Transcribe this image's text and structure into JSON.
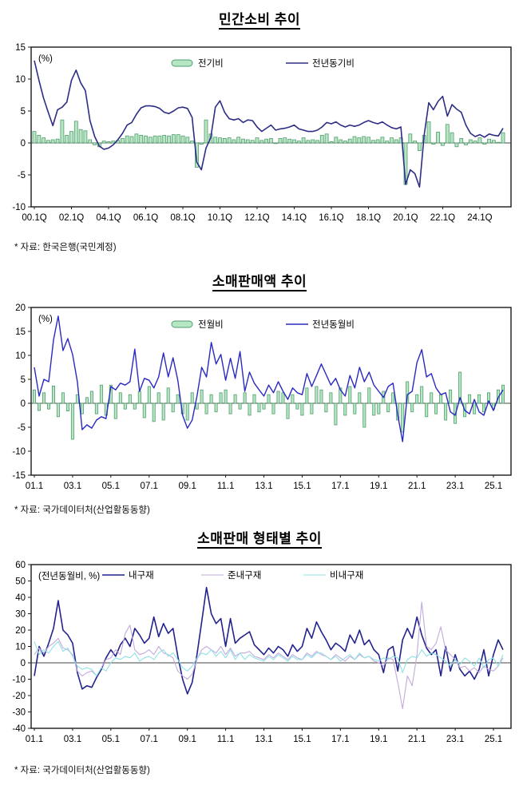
{
  "charts": [
    {
      "title": "민간소비 추이",
      "source": "* 자료: 한국은행(국민계정)",
      "chart_data": {
        "type": "bar+line",
        "unit_label": "(%)",
        "x_start": "00.1Q",
        "x_end": "25.2Q",
        "x_tick_labels": [
          "00.1Q",
          "02.1Q",
          "04.1Q",
          "06.1Q",
          "08.1Q",
          "10.1Q",
          "12.1Q",
          "14.1Q",
          "16.1Q",
          "18.1Q",
          "20.1Q",
          "22.1Q",
          "24.1Q"
        ],
        "x_tick_every": 8,
        "n_points": 102,
        "ylim": [
          -10,
          15
        ],
        "y_ticks": [
          15,
          10,
          5,
          0,
          -5,
          -10
        ],
        "grid": false,
        "legend_position": "inside-top-center",
        "series": [
          {
            "name": "전기비",
            "type": "bar",
            "fill": "#b7e6c3",
            "color": "#4f9e6e",
            "values": [
              1.8,
              1.2,
              0.8,
              0.4,
              0.5,
              0.6,
              3.6,
              1.2,
              1.8,
              3.4,
              2.1,
              1.9,
              0.5,
              -0.3,
              -0.6,
              0.3,
              0.2,
              0.3,
              0.4,
              0.7,
              1.1,
              1.0,
              1.4,
              1.2,
              1.1,
              0.9,
              1.1,
              1.1,
              1.2,
              1.1,
              1.3,
              1.3,
              1.1,
              0.9,
              0.3,
              -3.8,
              -0.2,
              3.6,
              1.4,
              0.9,
              0.8,
              0.7,
              0.8,
              0.5,
              0.9,
              0.6,
              0.5,
              0.4,
              0.8,
              0.4,
              0.6,
              0.7,
              -0.1,
              0.7,
              0.8,
              0.6,
              0.5,
              0.3,
              0.8,
              0.4,
              0.5,
              0.4,
              1.2,
              1.4,
              0.2,
              0.9,
              0.5,
              0.3,
              0.6,
              1.0,
              0.8,
              1.0,
              0.9,
              0.4,
              0.5,
              0.9,
              0.3,
              0.8,
              0.5,
              0.8,
              -6.5,
              1.4,
              0.3,
              -1.2,
              1.2,
              3.3,
              -0.2,
              1.7,
              -0.4,
              2.9,
              1.6,
              -0.6,
              0.7,
              -0.3,
              0.5,
              0.3,
              0.8,
              -0.2,
              0.6,
              0.4,
              0.1,
              1.6
            ]
          },
          {
            "name": "전년동기비",
            "type": "line",
            "color": "#2d2d86",
            "values": [
              12.9,
              9.8,
              7.0,
              4.8,
              2.7,
              5.2,
              5.6,
              6.4,
              9.8,
              11.4,
              9.4,
              8.2,
              3.5,
              1.0,
              -0.5,
              -1.0,
              -0.8,
              -0.3,
              0.5,
              1.5,
              2.8,
              3.2,
              4.5,
              5.5,
              5.8,
              5.8,
              5.7,
              5.4,
              4.8,
              4.6,
              5.0,
              5.5,
              5.6,
              5.4,
              4.0,
              -3.0,
              -4.2,
              -0.8,
              0.8,
              5.6,
              6.6,
              4.8,
              3.8,
              3.6,
              3.8,
              3.2,
              3.6,
              3.5,
              2.5,
              1.8,
              2.3,
              2.8,
              2.0,
              2.2,
              2.3,
              2.5,
              2.8,
              2.2,
              2.0,
              1.8,
              1.8,
              2.0,
              2.5,
              3.2,
              3.0,
              3.3,
              2.8,
              2.5,
              2.8,
              2.6,
              2.8,
              3.2,
              3.5,
              3.2,
              3.0,
              3.3,
              2.8,
              2.4,
              2.2,
              2.5,
              -6.5,
              -4.2,
              -4.8,
              -6.9,
              1.2,
              6.3,
              5.2,
              6.5,
              7.3,
              4.2,
              6.0,
              5.3,
              4.8,
              2.8,
              1.5,
              1.0,
              1.3,
              0.9,
              1.4,
              1.2,
              1.1,
              2.3
            ]
          }
        ]
      }
    },
    {
      "title": "소매판매액 추이",
      "source": "* 자료: 국가데이터처(산업활동동향)",
      "chart_data": {
        "type": "bar+line",
        "unit_label": "(%)",
        "x_start": "01.1",
        "x_end": "25.7",
        "x_tick_labels": [
          "01.1",
          "03.1",
          "05.1",
          "07.1",
          "09.1",
          "11.1",
          "13.1",
          "15.1",
          "17.1",
          "19.1",
          "21.1",
          "23.1",
          "25.1"
        ],
        "x_tick_every": 8,
        "n_points": 99,
        "ylim": [
          -15,
          20
        ],
        "y_ticks": [
          20,
          15,
          10,
          5,
          0,
          -5,
          -10,
          -15
        ],
        "grid": false,
        "legend_position": "inside-top-center",
        "series": [
          {
            "name": "전월비",
            "type": "bar",
            "fill": "#b7e6c3",
            "color": "#4f9e6e",
            "values": [
              2.8,
              -1.5,
              2.2,
              -1.2,
              3.6,
              -2.8,
              2.2,
              -1.6,
              -7.5,
              1.8,
              -2.2,
              1.2,
              2.5,
              -2.2,
              3.8,
              -2.5,
              3.8,
              -3.2,
              2.2,
              -1.2,
              1.8,
              -1.2,
              2.5,
              -3.0,
              3.5,
              -3.8,
              2.2,
              -3.5,
              3.2,
              -1.8,
              1.8,
              -2.2,
              -3.5,
              2.2,
              -1.2,
              2.8,
              -2.2,
              1.8,
              -1.8,
              2.2,
              2.8,
              -2.2,
              1.8,
              -1.2,
              2.2,
              -2.5,
              1.8,
              -1.8,
              -1.2,
              1.8,
              -2.2,
              2.5,
              2.2,
              -3.2,
              1.8,
              -1.2,
              -2.5,
              3.2,
              -2.2,
              3.5,
              2.8,
              -1.8,
              2.2,
              -4.5,
              3.2,
              -2.5,
              3.5,
              -2.2,
              2.2,
              -5.0,
              3.2,
              -2.5,
              -2.2,
              2.5,
              -1.8,
              2.2,
              -3.5,
              -6.0,
              4.5,
              -1.8,
              1.8,
              3.5,
              -2.8,
              2.2,
              -2.2,
              1.8,
              -3.5,
              2.8,
              -4.2,
              6.5,
              -2.8,
              1.8,
              -2.2,
              1.8,
              -1.8,
              2.2,
              -1.2,
              2.8,
              3.8
            ]
          },
          {
            "name": "전년동월비",
            "type": "line",
            "color": "#2a2ac2",
            "values": [
              7.5,
              1.5,
              5.0,
              4.5,
              13.2,
              18.2,
              11.0,
              13.5,
              10.2,
              4.5,
              -5.5,
              -4.5,
              -5.2,
              -3.5,
              -2.8,
              -3.2,
              3.5,
              2.8,
              4.2,
              3.8,
              4.5,
              11.3,
              2.5,
              5.2,
              4.8,
              3.2,
              5.5,
              10.5,
              5.5,
              9.5,
              4.8,
              -2.5,
              -5.2,
              -3.5,
              1.5,
              7.5,
              5.5,
              12.7,
              8.2,
              10.2,
              4.8,
              9.4,
              5.2,
              10.8,
              2.5,
              6.5,
              4.2,
              2.8,
              1.5,
              3.8,
              2.2,
              4.5,
              2.5,
              0.8,
              3.2,
              2.2,
              1.8,
              6.2,
              3.5,
              5.8,
              8.2,
              6.0,
              3.8,
              5.2,
              2.8,
              1.5,
              5.8,
              3.2,
              7.5,
              4.5,
              6.5,
              3.8,
              2.5,
              1.2,
              3.5,
              4.2,
              -2.5,
              -8.0,
              1.8,
              2.5,
              8.5,
              11.2,
              5.5,
              6.2,
              3.2,
              1.8,
              2.2,
              -1.8,
              -2.5,
              1.2,
              -1.5,
              -2.2,
              0.8,
              -1.8,
              -2.5,
              0.5,
              -1.5,
              1.2,
              2.8
            ]
          }
        ]
      }
    },
    {
      "title": "소매판매 형태별 추이",
      "source": "* 자료: 국가데이터처(산업활동동향)",
      "chart_data": {
        "type": "line",
        "unit_label": "(전년동월비, %)",
        "x_start": "01.1",
        "x_end": "25.7",
        "x_tick_labels": [
          "01.1",
          "03.1",
          "05.1",
          "07.1",
          "09.1",
          "11.1",
          "13.1",
          "15.1",
          "17.1",
          "19.1",
          "21.1",
          "23.1",
          "25.1"
        ],
        "x_tick_every": 8,
        "n_points": 99,
        "ylim": [
          -40,
          60
        ],
        "y_ticks": [
          60,
          50,
          40,
          30,
          20,
          10,
          0,
          -10,
          -20,
          -30,
          -40
        ],
        "grid": false,
        "legend_position": "inside-top-center",
        "series": [
          {
            "name": "내구재",
            "type": "line",
            "color": "#22228e",
            "values": [
              -8,
              10,
              4,
              12,
              21,
              38,
              20,
              17,
              12,
              -6,
              -16,
              -14,
              -15,
              -9,
              -4,
              3,
              8,
              4,
              11,
              15,
              10,
              21,
              17,
              12,
              15,
              28,
              16,
              24,
              18,
              21,
              4,
              -10,
              -19,
              -12,
              5,
              25,
              46,
              30,
              24,
              27,
              10,
              27,
              12,
              15,
              17,
              19,
              11,
              8,
              5,
              9,
              6,
              10,
              8,
              4,
              11,
              7,
              10,
              21,
              15,
              25,
              19,
              14,
              8,
              12,
              10,
              7,
              17,
              12,
              20,
              11,
              14,
              8,
              5,
              -6,
              8,
              10,
              -5,
              14,
              21,
              15,
              28,
              17,
              9,
              5,
              8,
              -8,
              10,
              -5,
              5,
              -4,
              -8,
              -5,
              -10,
              -4,
              8,
              -8,
              5,
              14,
              8
            ]
          },
          {
            "name": "준내구재",
            "type": "line",
            "color": "#c3aade",
            "values": [
              5,
              9,
              6,
              10,
              12,
              15,
              9,
              8,
              5,
              -5,
              -8,
              -6,
              -5,
              -8,
              -3,
              2,
              3,
              8,
              5,
              18,
              23,
              8,
              5,
              6,
              8,
              5,
              10,
              6,
              5,
              3,
              -5,
              -8,
              -10,
              -7,
              2,
              8,
              10,
              8,
              6,
              10,
              5,
              9,
              4,
              6,
              6,
              7,
              4,
              3,
              2,
              5,
              3,
              6,
              4,
              2,
              5,
              3,
              2,
              6,
              4,
              7,
              5,
              4,
              2,
              5,
              3,
              1,
              4,
              2,
              5,
              3,
              4,
              1,
              0,
              -2,
              3,
              2,
              -12,
              -28,
              -8,
              -14,
              5,
              37,
              10,
              8,
              12,
              22,
              8,
              5,
              2,
              -3,
              -2,
              -5,
              -3,
              -6,
              -2,
              -4,
              -5,
              -2,
              3
            ]
          },
          {
            "name": "비내구재",
            "type": "line",
            "color": "#8fe2e4",
            "values": [
              13,
              5,
              8,
              6,
              10,
              13,
              7,
              9,
              4,
              -2,
              -4,
              -3,
              -4,
              -8,
              -3,
              -5,
              0,
              3,
              2,
              4,
              3,
              6,
              1,
              3,
              4,
              2,
              6,
              8,
              4,
              6,
              2,
              -3,
              -5,
              -2,
              3,
              6,
              5,
              8,
              4,
              7,
              3,
              8,
              2,
              6,
              2,
              5,
              3,
              2,
              1,
              4,
              2,
              5,
              3,
              1,
              4,
              2,
              2,
              5,
              3,
              6,
              6,
              4,
              2,
              4,
              1,
              3,
              5,
              2,
              6,
              3,
              4,
              2,
              1,
              3,
              2,
              4,
              3,
              -6,
              2,
              4,
              3,
              8,
              4,
              6,
              5,
              3,
              1,
              -2,
              2,
              -1,
              3,
              1,
              -2,
              3,
              -3,
              2,
              3,
              -2,
              5
            ]
          }
        ]
      }
    }
  ]
}
